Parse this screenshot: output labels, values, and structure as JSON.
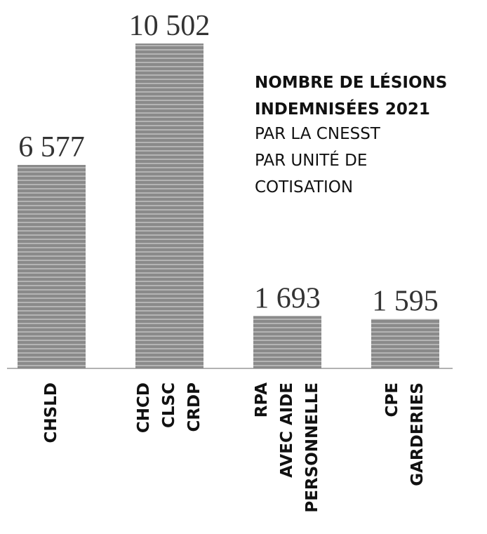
{
  "chart_data": {
    "type": "bar",
    "title": [
      "NOMBRE DE LÉSIONS",
      "INDEMNISÉES 2021"
    ],
    "subtitle": [
      "PAR LA CNESST",
      "PAR UNITÉ DE",
      "COTISATION"
    ],
    "categories": [
      [
        "CHSLD"
      ],
      [
        "CHCD",
        "CLSC",
        "CRDP"
      ],
      [
        "RPA",
        "AVEC AIDE",
        "PERSONNELLE"
      ],
      [
        "CPE",
        "GARDERIES"
      ]
    ],
    "values": [
      6577,
      10502,
      1693,
      1595
    ],
    "value_labels": [
      "6 577",
      "10 502",
      "1 693",
      "1 595"
    ],
    "color": "#8a8a8a"
  }
}
